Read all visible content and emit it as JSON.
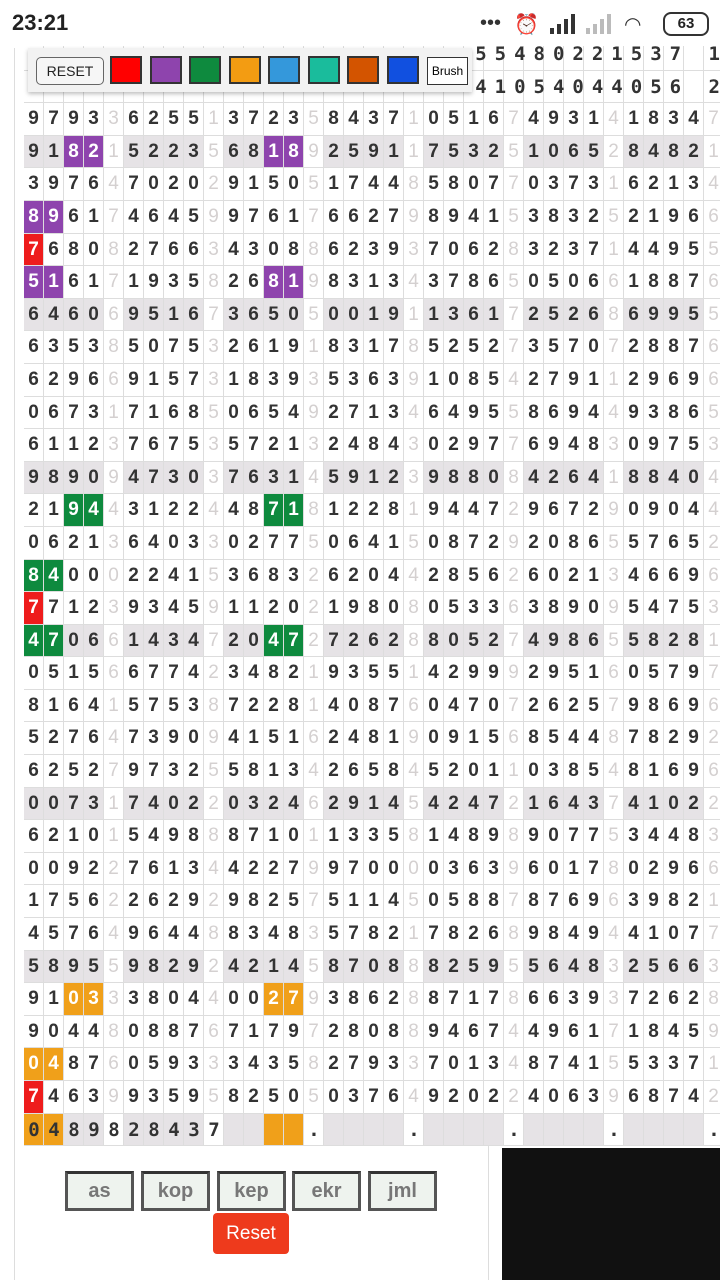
{
  "status_bar": {
    "time": "23:21",
    "battery": "63",
    "icons": [
      "more-dots-icon",
      "alarm-icon",
      "signal-icon",
      "signal-off-icon",
      "wifi-icon",
      "battery-icon"
    ]
  },
  "toolbar": {
    "reset_label": "RESET",
    "brush_label": "Brush",
    "colors": [
      "#ff0000",
      "#8e44ad",
      "#0e8a3e",
      "#f39c12",
      "#3498db",
      "#1abc9c",
      "#d35400",
      "#1150e0"
    ]
  },
  "grid": {
    "rows": [
      "                       55480221537 1",
      "                       41054044056 2",
      "97933625513723584371051674931418347",
      "91821522356818925911753251065284821",
      "39764702029150517448580770373162134",
      "89617464599761766279894153832521966",
      "76808276634308862393706283237144955",
      "51617193582681983134378650506618876",
      "64606951673650500191136172526869955",
      "63538507532619183178525273570728876",
      "62966915731839353639108542791129696",
      "06731716850654927134649558694493865",
      "61123767535721324843029776948309753",
      "98909473037631459123988084264188404",
      "21944312244871812281944729672909044",
      "06213640330277506415087292086557652",
      "84000224153683262044285626021346696",
      "77123934591120219808053363890954753",
      "47066143472047272628805274986558281",
      "05156677423482193551429992951605797",
      "81641575387228140876047072625798696",
      "52764739094151624819091568544878292",
      "62527973255813426584520110385481696",
      "00731740220324629145424721643741022",
      "62101549888710113358148989077534483",
      "00922761344227997000036396017802966",
      "17562262929825751145058878769639821",
      "45764964488348357821782689849441077",
      "58955982924214587088825955648325663",
      "91033380440027938628871786639372628",
      "90448088767179728088946744961718459",
      "04876059333435827933701348741553371",
      "74639935958250503764920224063968742",
      "0489828437    .    .    .    .    ."
    ],
    "shaded_rows": [
      3,
      8,
      13,
      18,
      23,
      28,
      33
    ],
    "highlights": [
      {
        "row": 3,
        "col": 2,
        "color": "#8e44ad"
      },
      {
        "row": 3,
        "col": 3,
        "color": "#8e44ad"
      },
      {
        "row": 3,
        "col": 12,
        "color": "#8e44ad"
      },
      {
        "row": 3,
        "col": 13,
        "color": "#8e44ad"
      },
      {
        "row": 5,
        "col": 0,
        "color": "#8e44ad"
      },
      {
        "row": 5,
        "col": 1,
        "color": "#8e44ad"
      },
      {
        "row": 6,
        "col": 0,
        "color": "#ee1c1c"
      },
      {
        "row": 7,
        "col": 0,
        "color": "#8e44ad"
      },
      {
        "row": 7,
        "col": 1,
        "color": "#8e44ad"
      },
      {
        "row": 7,
        "col": 12,
        "color": "#8e44ad"
      },
      {
        "row": 7,
        "col": 13,
        "color": "#8e44ad"
      },
      {
        "row": 14,
        "col": 2,
        "color": "#0e8a3e"
      },
      {
        "row": 14,
        "col": 3,
        "color": "#0e8a3e"
      },
      {
        "row": 14,
        "col": 12,
        "color": "#0e8a3e"
      },
      {
        "row": 14,
        "col": 13,
        "color": "#0e8a3e"
      },
      {
        "row": 16,
        "col": 0,
        "color": "#0e8a3e"
      },
      {
        "row": 16,
        "col": 1,
        "color": "#0e8a3e"
      },
      {
        "row": 17,
        "col": 0,
        "color": "#ee1c1c"
      },
      {
        "row": 18,
        "col": 0,
        "color": "#0e8a3e"
      },
      {
        "row": 18,
        "col": 1,
        "color": "#0e8a3e"
      },
      {
        "row": 18,
        "col": 12,
        "color": "#0e8a3e"
      },
      {
        "row": 18,
        "col": 13,
        "color": "#0e8a3e"
      },
      {
        "row": 29,
        "col": 2,
        "color": "#f0a01a"
      },
      {
        "row": 29,
        "col": 3,
        "color": "#f0a01a"
      },
      {
        "row": 29,
        "col": 12,
        "color": "#f0a01a"
      },
      {
        "row": 29,
        "col": 13,
        "color": "#f0a01a"
      },
      {
        "row": 31,
        "col": 0,
        "color": "#f0a01a"
      },
      {
        "row": 31,
        "col": 1,
        "color": "#f0a01a"
      },
      {
        "row": 32,
        "col": 0,
        "color": "#ee1c1c"
      },
      {
        "row": 33,
        "col": 0,
        "color": "#f0a01a"
      },
      {
        "row": 33,
        "col": 1,
        "color": "#f0a01a"
      },
      {
        "row": 33,
        "col": 12,
        "color": "#f0a01a"
      },
      {
        "row": 33,
        "col": 13,
        "color": "#f0a01a"
      }
    ]
  },
  "buttons": {
    "as": "as",
    "kop": "kop",
    "kep": "kep",
    "ekr": "ekr",
    "jml": "jml",
    "reset": "Reset"
  }
}
